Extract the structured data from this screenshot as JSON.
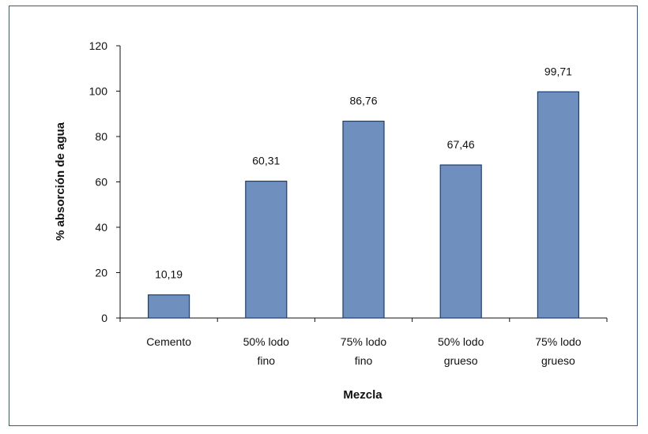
{
  "chart_data": {
    "type": "bar",
    "categories": [
      [
        "Cemento"
      ],
      [
        "50% lodo",
        "fino"
      ],
      [
        "75% lodo",
        "fino"
      ],
      [
        "50% lodo",
        "grueso"
      ],
      [
        "75% lodo",
        "grueso"
      ]
    ],
    "values": [
      10.19,
      60.31,
      86.76,
      67.46,
      99.71
    ],
    "data_labels": [
      "10,19",
      "60,31",
      "86,76",
      "67,46",
      "99,71"
    ],
    "xlabel": "Mezcla",
    "ylabel": "% absorción  de  agua",
    "ylim": [
      0,
      120
    ],
    "yticks": [
      0,
      20,
      40,
      60,
      80,
      100,
      120
    ],
    "grid": false,
    "colors": {
      "bar_fill": "#6f8fbf",
      "bar_stroke": "#1c3f73",
      "frame": "#1f5fa8"
    }
  }
}
